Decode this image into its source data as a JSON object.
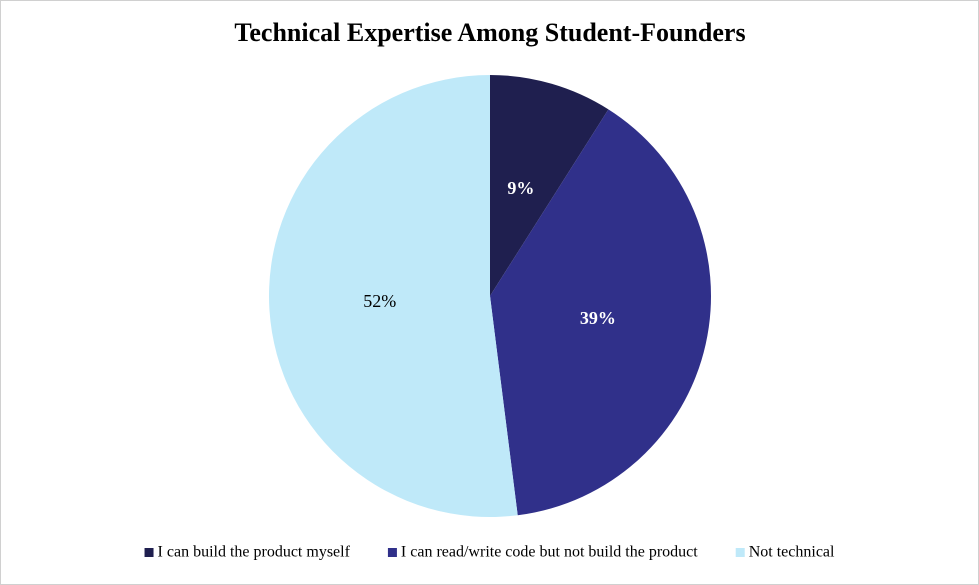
{
  "chart_data": {
    "type": "pie",
    "title": "Technical Expertise Among Student-Founders",
    "categories": [
      "I can build the product myself",
      "I can read/write code but not build the product",
      "Not technical"
    ],
    "values": [
      9,
      39,
      52
    ],
    "value_labels": [
      "9%",
      "39%",
      "52%"
    ],
    "colors": [
      "#1f1f4f",
      "#30308a",
      "#bfe9f9"
    ],
    "legend": "bottom"
  }
}
